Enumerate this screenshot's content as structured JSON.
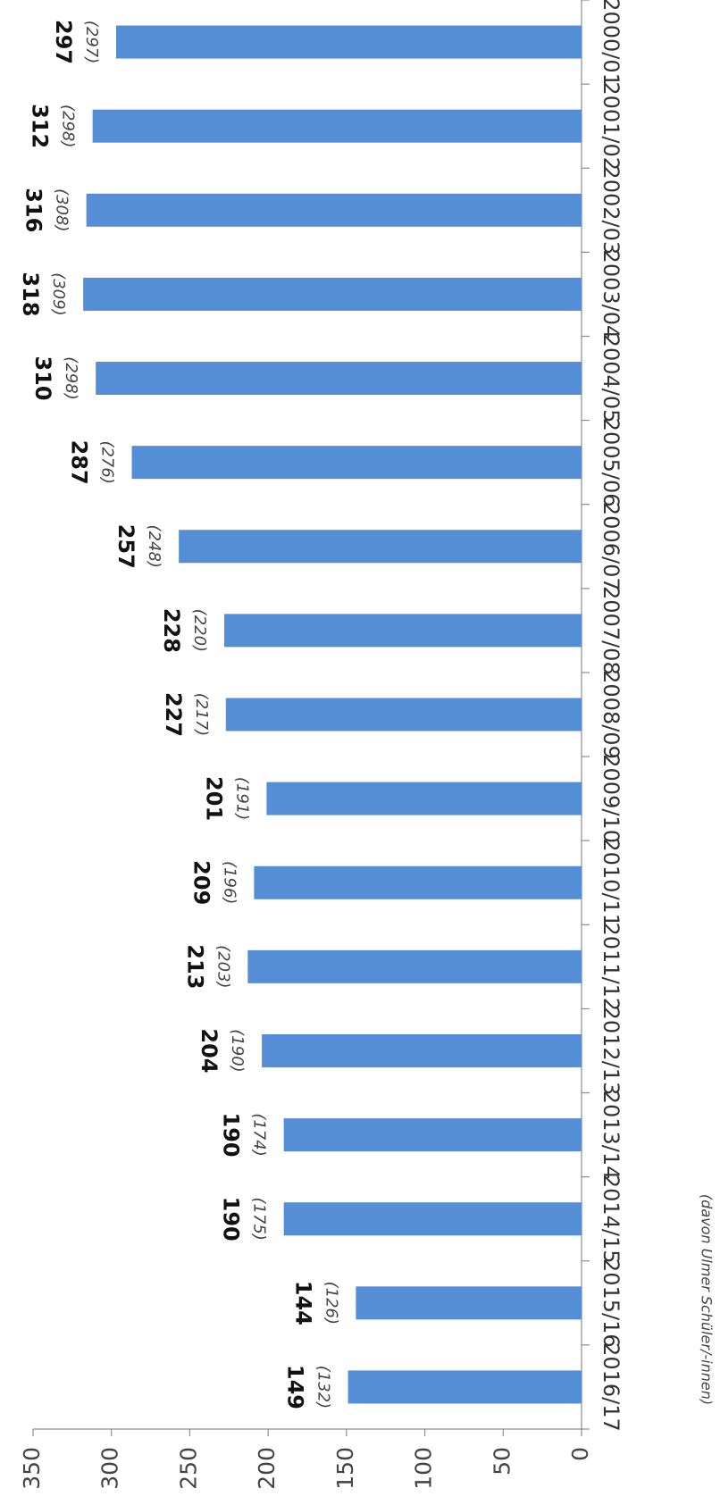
{
  "chart_data": {
    "type": "bar",
    "categories": [
      "2000/01",
      "2001/02",
      "2002/03",
      "2003/04",
      "2004/05",
      "2005/06",
      "2006/07",
      "2007/08",
      "2008/09",
      "2009/10",
      "2010/11",
      "2011/12",
      "2012/13",
      "2013/14",
      "2014/15",
      "2015/16",
      "2016/17"
    ],
    "values": [
      297,
      312,
      316,
      318,
      310,
      287,
      257,
      228,
      227,
      201,
      209,
      213,
      204,
      190,
      190,
      144,
      149
    ],
    "sub_values": [
      297,
      298,
      308,
      309,
      298,
      276,
      248,
      220,
      217,
      191,
      196,
      203,
      190,
      174,
      175,
      126,
      132
    ],
    "sub_value_note": "(davon Ulmer Schüler/-innen)",
    "yticks": [
      0,
      50,
      100,
      150,
      200,
      250,
      300,
      350
    ],
    "ylim": [
      0,
      350
    ],
    "orientation": "rotated-90-clockwise",
    "grid": false,
    "bar_color": "#558ed5"
  }
}
